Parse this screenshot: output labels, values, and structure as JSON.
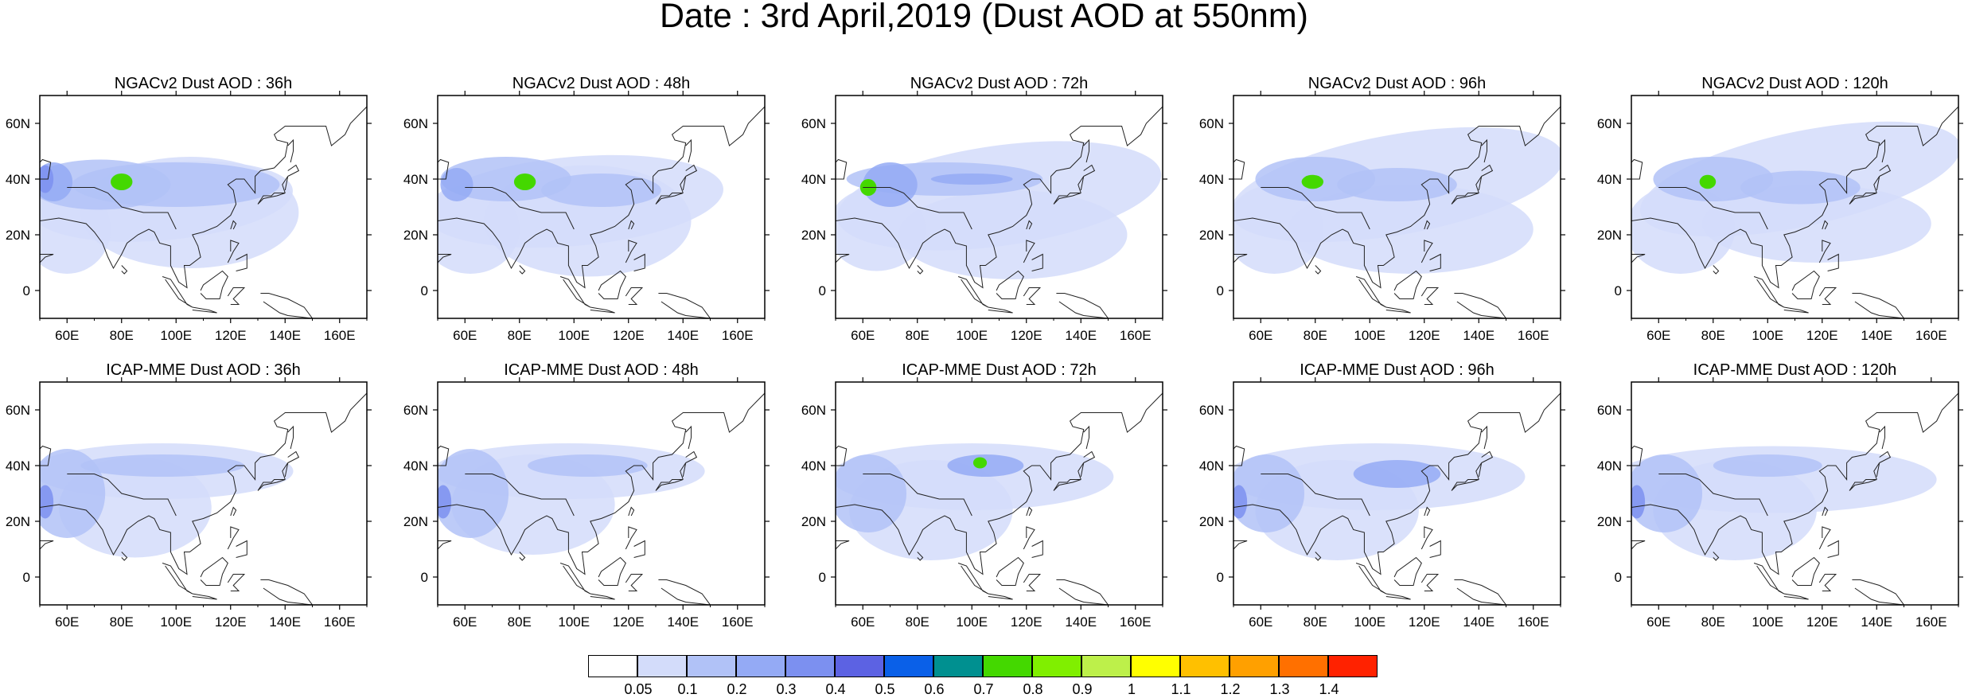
{
  "title": "Date : 3rd April,2019 (Dust AOD at 550nm)",
  "x_ticks": [
    "60E",
    "80E",
    "100E",
    "120E",
    "140E",
    "160E"
  ],
  "y_ticks": [
    "60N",
    "40N",
    "20N",
    "0"
  ],
  "panels": [
    {
      "title": "NGACv2 Dust AOD : 36h"
    },
    {
      "title": "NGACv2 Dust AOD : 48h"
    },
    {
      "title": "NGACv2 Dust AOD : 72h"
    },
    {
      "title": "NGACv2 Dust AOD : 96h"
    },
    {
      "title": "NGACv2 Dust AOD : 120h"
    },
    {
      "title": "ICAP-MME Dust AOD : 36h"
    },
    {
      "title": "ICAP-MME Dust AOD : 48h"
    },
    {
      "title": "ICAP-MME Dust AOD : 72h"
    },
    {
      "title": "ICAP-MME Dust AOD : 96h"
    },
    {
      "title": "ICAP-MME Dust AOD : 120h"
    }
  ],
  "colorbar": {
    "labels": [
      "0.05",
      "0.1",
      "0.2",
      "0.3",
      "0.4",
      "0.5",
      "0.6",
      "0.7",
      "0.8",
      "0.9",
      "1",
      "1.1",
      "1.2",
      "1.3",
      "1.4"
    ],
    "colors": [
      "#ffffff",
      "#d3dcfa",
      "#b1c2f7",
      "#94aaf5",
      "#7c90f0",
      "#5c62e3",
      "#0a60e8",
      "#009090",
      "#44d800",
      "#80ef00",
      "#bdf04a",
      "#ffff00",
      "#ffc000",
      "#ffa000",
      "#ff7000",
      "#ff2200"
    ]
  }
}
